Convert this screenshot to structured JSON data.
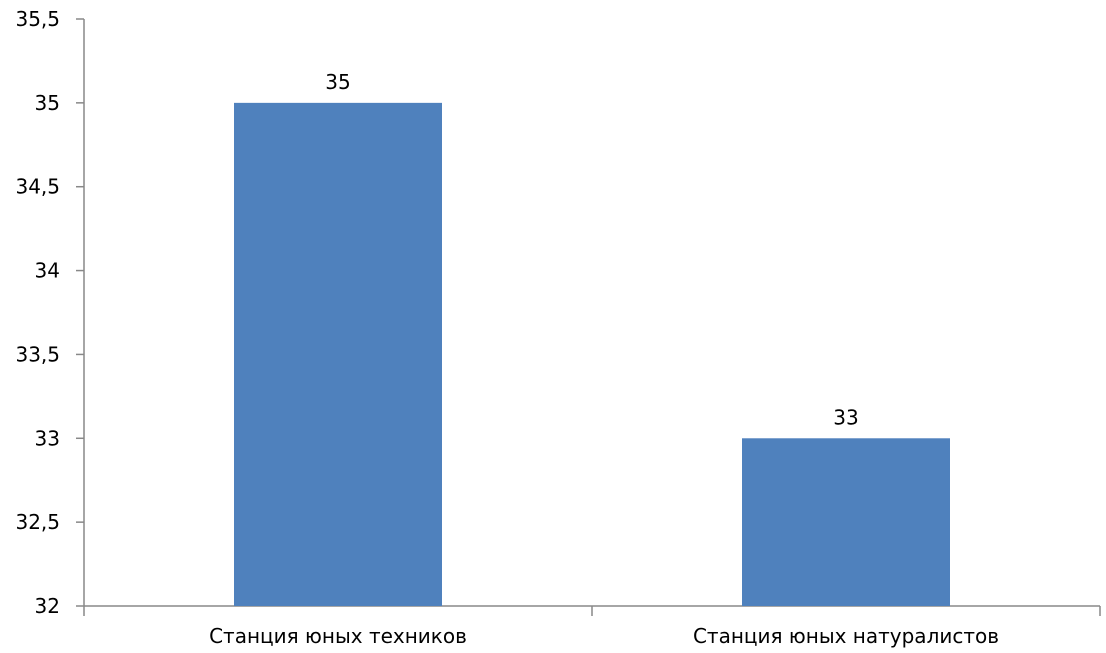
{
  "chart_data": {
    "type": "bar",
    "title": "",
    "xlabel": "",
    "ylabel": "",
    "categories": [
      "Станция юных техников",
      "Станция юных натуралистов"
    ],
    "values": [
      35,
      33
    ],
    "data_labels": [
      "35",
      "33"
    ],
    "ylim": [
      32,
      35.5
    ],
    "yticks": [
      32,
      32.5,
      33,
      33.5,
      34,
      34.5,
      35,
      35.5
    ],
    "ytick_labels": [
      "32",
      "32,5",
      "33",
      "33,5",
      "34",
      "34,5",
      "35",
      "35,5"
    ],
    "grid": false,
    "legend": "none",
    "colors": {
      "bar": "#4F81BD",
      "axis": "#888888",
      "text": "#000000"
    }
  }
}
